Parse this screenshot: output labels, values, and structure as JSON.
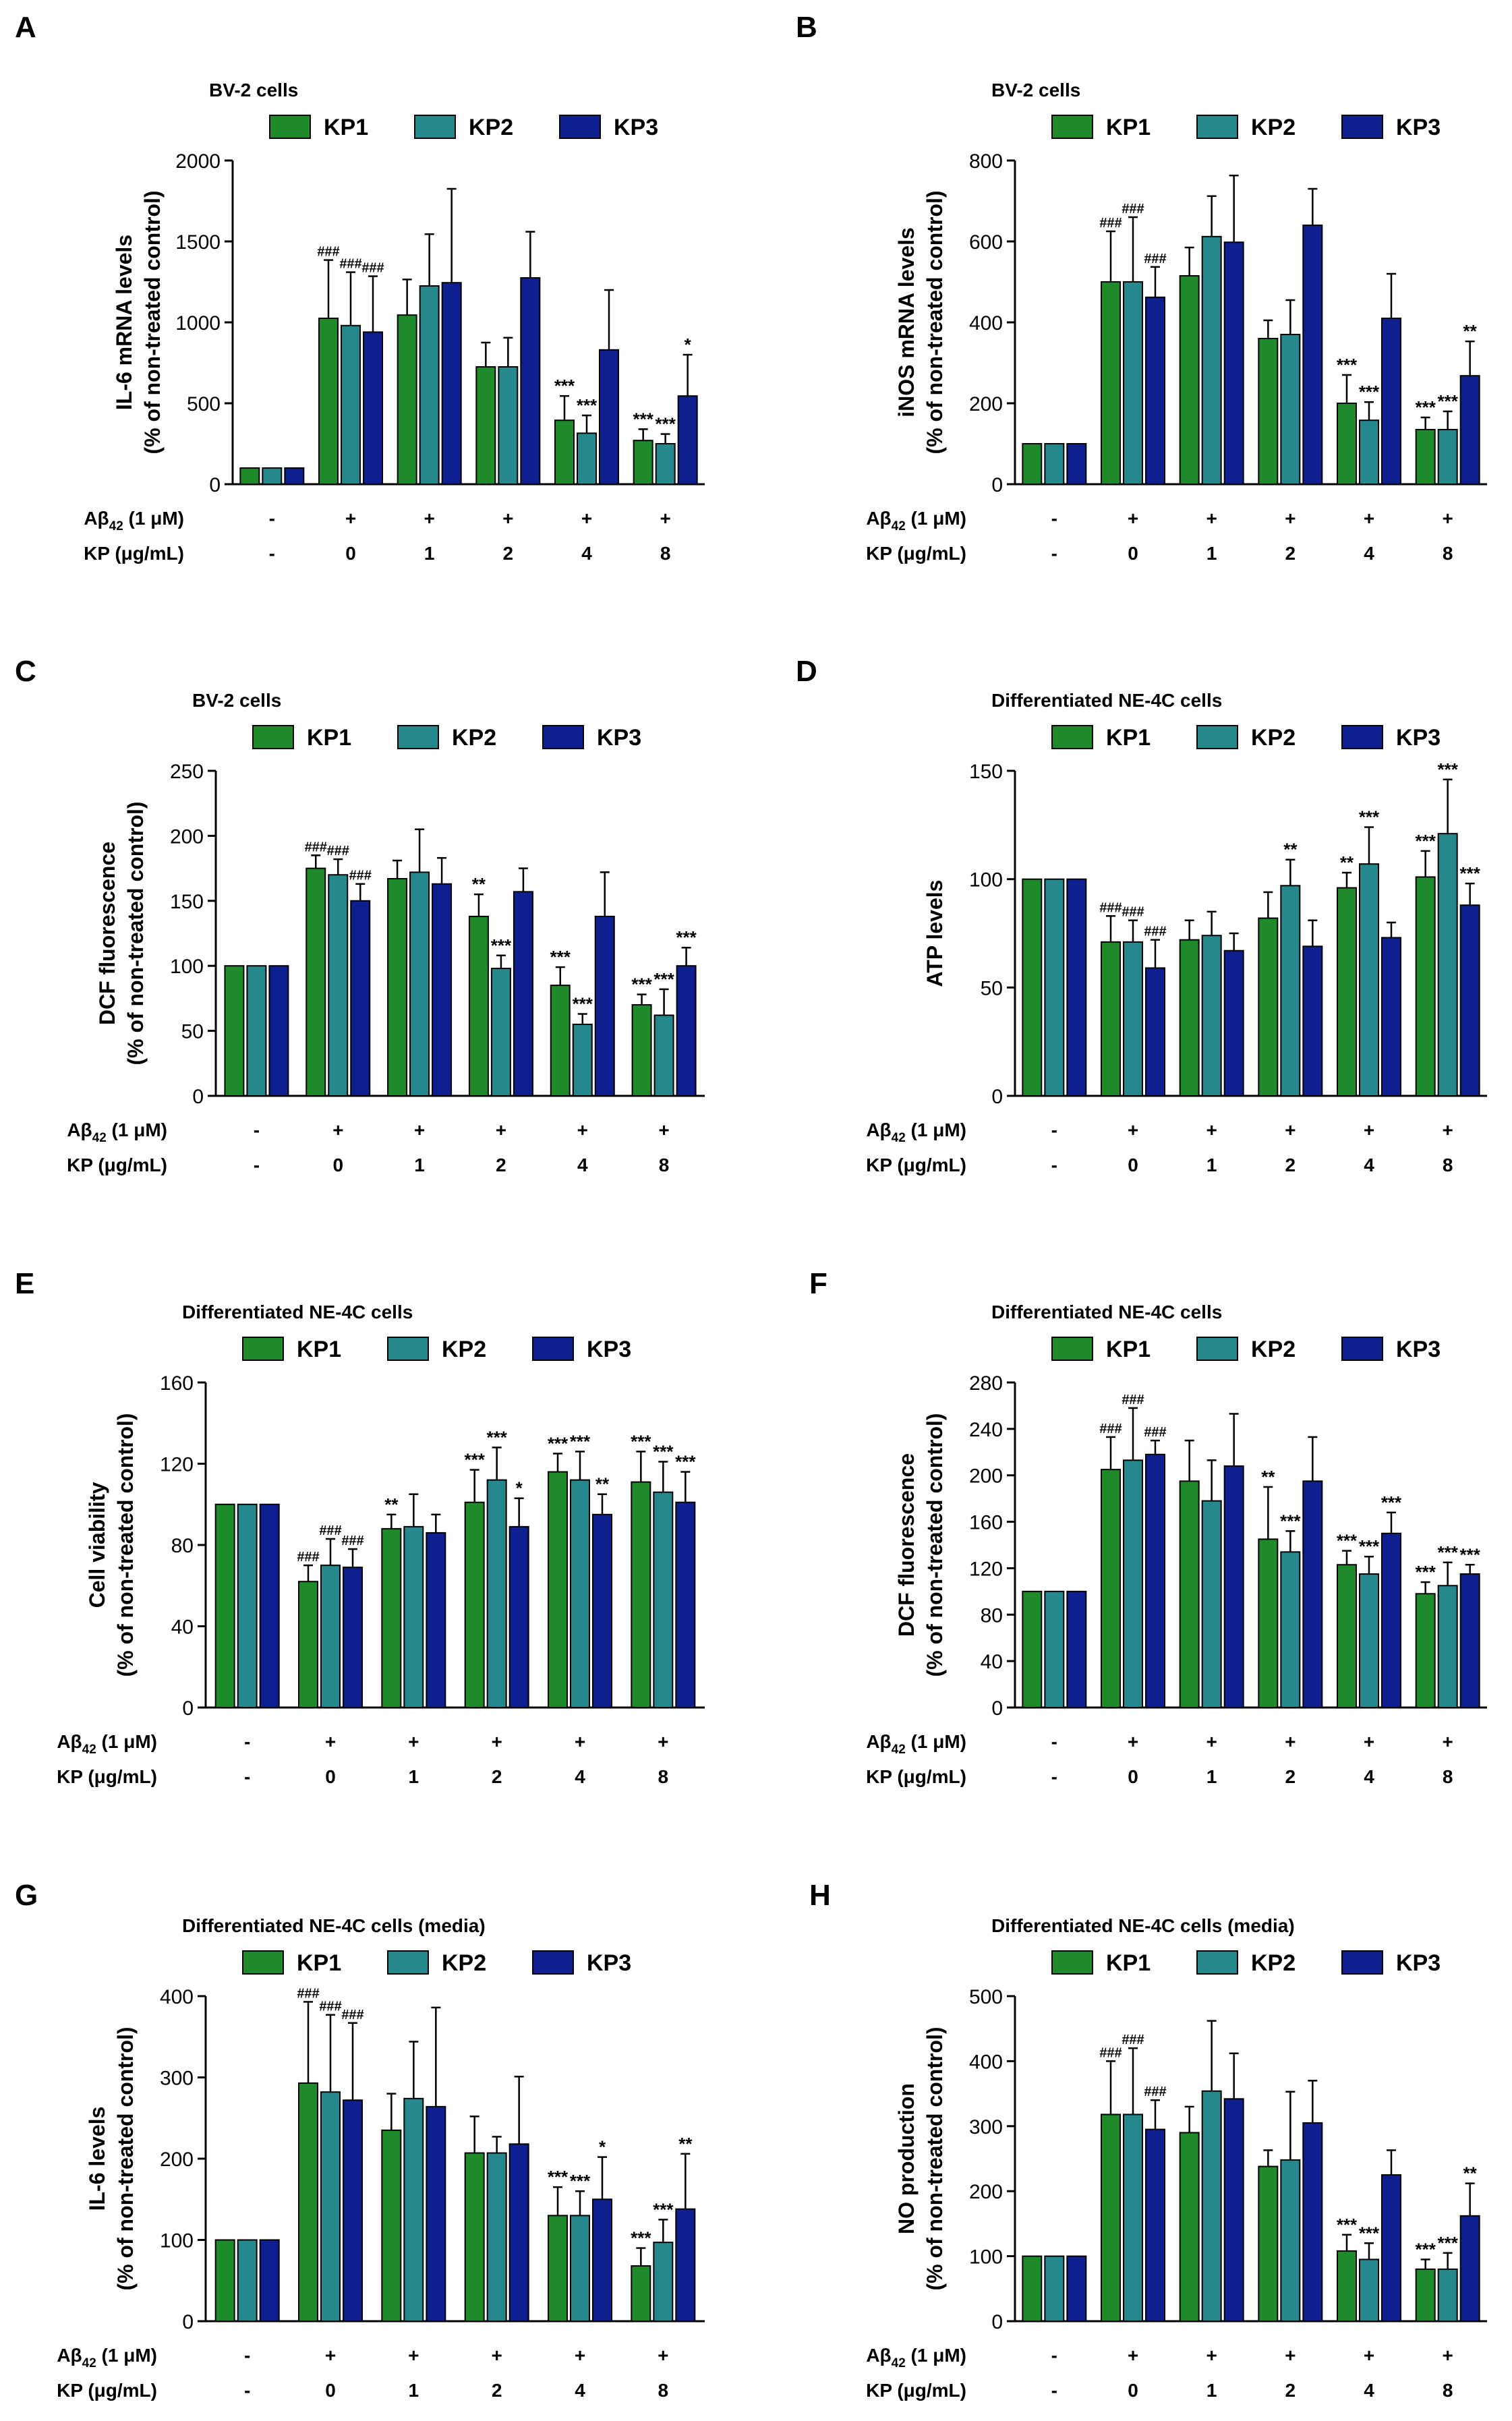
{
  "figure": {
    "legend": {
      "items": [
        "KP1",
        "KP2",
        "KP3"
      ]
    },
    "colors": {
      "KP1": "#1f8a2a",
      "KP2": "#25888d",
      "KP3": "#0e1f8f"
    },
    "x_axis": {
      "row1_label": "Aβ42 (1 μM)",
      "row1_values": [
        "-",
        "+",
        "+",
        "+",
        "+",
        "+"
      ],
      "row2_label": "KP (μg/mL)",
      "row2_values": [
        "-",
        "0",
        "1",
        "2",
        "4",
        "8"
      ]
    }
  },
  "chart_data": [
    {
      "panel": "A",
      "type": "bar",
      "title": "BV-2 cells",
      "ylabel_line1": "IL-6 mRNA levels",
      "ylabel_line2": "(% of non-treated control)",
      "ylim": [
        0,
        2000
      ],
      "yticks": [
        0,
        500,
        1000,
        1500,
        2000
      ],
      "categories": [
        "control",
        "0",
        "1",
        "2",
        "4",
        "8"
      ],
      "series": [
        {
          "name": "KP1",
          "values": [
            100,
            1025,
            1045,
            725,
            395,
            270
          ],
          "errors": [
            0,
            360,
            220,
            150,
            150,
            70
          ],
          "marks": [
            "",
            "###",
            "",
            "",
            "***",
            "***"
          ]
        },
        {
          "name": "KP2",
          "values": [
            100,
            980,
            1225,
            725,
            315,
            250
          ],
          "errors": [
            0,
            330,
            320,
            180,
            110,
            60
          ],
          "marks": [
            "",
            "###",
            "",
            "",
            "***",
            "***"
          ]
        },
        {
          "name": "KP3",
          "values": [
            100,
            940,
            1245,
            1275,
            830,
            545
          ],
          "errors": [
            0,
            345,
            580,
            285,
            370,
            255
          ],
          "marks": [
            "",
            "###",
            "",
            "",
            "",
            "*"
          ]
        }
      ]
    },
    {
      "panel": "B",
      "type": "bar",
      "title": "BV-2 cells",
      "ylabel_line1": "iNOS mRNA levels",
      "ylabel_line2": "(% of non-treated control)",
      "ylim": [
        0,
        800
      ],
      "yticks": [
        0,
        200,
        400,
        600,
        800
      ],
      "categories": [
        "control",
        "0",
        "1",
        "2",
        "4",
        "8"
      ],
      "series": [
        {
          "name": "KP1",
          "values": [
            100,
            500,
            515,
            360,
            200,
            135
          ],
          "errors": [
            0,
            125,
            70,
            45,
            70,
            30
          ],
          "marks": [
            "",
            "###",
            "",
            "",
            "***",
            "***"
          ]
        },
        {
          "name": "KP2",
          "values": [
            100,
            500,
            612,
            370,
            158,
            135
          ],
          "errors": [
            0,
            160,
            100,
            85,
            45,
            45
          ],
          "marks": [
            "",
            "###",
            "",
            "",
            "***",
            "***"
          ]
        },
        {
          "name": "KP3",
          "values": [
            100,
            462,
            598,
            640,
            410,
            268
          ],
          "errors": [
            0,
            75,
            165,
            90,
            110,
            85
          ],
          "marks": [
            "",
            "###",
            "",
            "",
            "",
            "**"
          ]
        }
      ]
    },
    {
      "panel": "C",
      "type": "bar",
      "title": "BV-2 cells",
      "ylabel_line1": "DCF fluorescence",
      "ylabel_line2": "(% of non-treated control)",
      "ylim": [
        0,
        250
      ],
      "yticks": [
        0,
        50,
        100,
        150,
        200,
        250
      ],
      "categories": [
        "control",
        "0",
        "1",
        "2",
        "4",
        "8"
      ],
      "series": [
        {
          "name": "KP1",
          "values": [
            100,
            175,
            167,
            138,
            85,
            70
          ],
          "errors": [
            0,
            10,
            14,
            17,
            14,
            8
          ],
          "marks": [
            "",
            "###",
            "",
            "**",
            "***",
            "***"
          ]
        },
        {
          "name": "KP2",
          "values": [
            100,
            170,
            172,
            98,
            55,
            62
          ],
          "errors": [
            0,
            12,
            33,
            10,
            8,
            20
          ],
          "marks": [
            "",
            "###",
            "",
            "***",
            "***",
            "***"
          ]
        },
        {
          "name": "KP3",
          "values": [
            100,
            150,
            163,
            157,
            138,
            100
          ],
          "errors": [
            0,
            13,
            20,
            18,
            34,
            14
          ],
          "marks": [
            "",
            "###",
            "",
            "",
            "",
            "***"
          ]
        }
      ]
    },
    {
      "panel": "D",
      "type": "bar",
      "title": "Differentiated NE-4C cells",
      "ylabel_line1": "ATP levels",
      "ylabel_line2": "",
      "ylim": [
        0,
        150
      ],
      "yticks": [
        0,
        50,
        100,
        150
      ],
      "categories": [
        "control",
        "0",
        "1",
        "2",
        "4",
        "8"
      ],
      "series": [
        {
          "name": "KP1",
          "values": [
            100,
            71,
            72,
            82,
            96,
            101
          ],
          "errors": [
            0,
            12,
            9,
            12,
            7,
            12
          ],
          "marks": [
            "",
            "###",
            "",
            "",
            "**",
            "***"
          ]
        },
        {
          "name": "KP2",
          "values": [
            100,
            71,
            74,
            97,
            107,
            121
          ],
          "errors": [
            0,
            10,
            11,
            12,
            17,
            25
          ],
          "marks": [
            "",
            "###",
            "",
            "**",
            "***",
            "***"
          ]
        },
        {
          "name": "KP3",
          "values": [
            100,
            59,
            67,
            69,
            73,
            88
          ],
          "errors": [
            0,
            13,
            8,
            12,
            7,
            10
          ],
          "marks": [
            "",
            "###",
            "",
            "",
            "",
            "***"
          ]
        }
      ]
    },
    {
      "panel": "E",
      "type": "bar",
      "title": "Differentiated NE-4C cells",
      "ylabel_line1": "Cell viability",
      "ylabel_line2": "(% of non-treated control)",
      "ylim": [
        0,
        160
      ],
      "yticks": [
        0,
        40,
        80,
        120,
        160
      ],
      "categories": [
        "control",
        "0",
        "1",
        "2",
        "4",
        "8"
      ],
      "series": [
        {
          "name": "KP1",
          "values": [
            100,
            62,
            88,
            101,
            116,
            111
          ],
          "errors": [
            0,
            8,
            7,
            16,
            9,
            15
          ],
          "marks": [
            "",
            "###",
            "**",
            "***",
            "***",
            "***"
          ]
        },
        {
          "name": "KP2",
          "values": [
            100,
            70,
            89,
            112,
            112,
            106
          ],
          "errors": [
            0,
            13,
            16,
            16,
            14,
            15
          ],
          "marks": [
            "",
            "###",
            "",
            "***",
            "***",
            "***"
          ]
        },
        {
          "name": "KP3",
          "values": [
            100,
            69,
            86,
            89,
            95,
            101
          ],
          "errors": [
            0,
            9,
            9,
            14,
            10,
            15
          ],
          "marks": [
            "",
            "###",
            "",
            "*",
            "**",
            "***"
          ]
        }
      ]
    },
    {
      "panel": "F",
      "type": "bar",
      "title": "Differentiated NE-4C cells",
      "ylabel_line1": "DCF fluorescence",
      "ylabel_line2": "(% of non-treated control)",
      "ylim": [
        0,
        280
      ],
      "yticks": [
        0,
        40,
        80,
        120,
        160,
        200,
        240,
        280
      ],
      "categories": [
        "control",
        "0",
        "1",
        "2",
        "4",
        "8"
      ],
      "series": [
        {
          "name": "KP1",
          "values": [
            100,
            205,
            195,
            145,
            123,
            98
          ],
          "errors": [
            0,
            28,
            35,
            45,
            12,
            10
          ],
          "marks": [
            "",
            "###",
            "",
            "**",
            "***",
            "***"
          ]
        },
        {
          "name": "KP2",
          "values": [
            100,
            213,
            178,
            134,
            115,
            105
          ],
          "errors": [
            0,
            45,
            35,
            18,
            15,
            20
          ],
          "marks": [
            "",
            "###",
            "",
            "***",
            "***",
            "***"
          ]
        },
        {
          "name": "KP3",
          "values": [
            100,
            218,
            208,
            195,
            150,
            115
          ],
          "errors": [
            0,
            12,
            45,
            38,
            18,
            8
          ],
          "marks": [
            "",
            "###",
            "",
            "",
            "***",
            "***"
          ]
        }
      ]
    },
    {
      "panel": "G",
      "type": "bar",
      "title": "Differentiated NE-4C cells (media)",
      "ylabel_line1": "IL-6 levels",
      "ylabel_line2": "(% of non-treated control)",
      "ylim": [
        0,
        400
      ],
      "yticks": [
        0,
        100,
        200,
        300,
        400
      ],
      "categories": [
        "control",
        "0",
        "1",
        "2",
        "4",
        "8"
      ],
      "series": [
        {
          "name": "KP1",
          "values": [
            100,
            293,
            235,
            207,
            130,
            68
          ],
          "errors": [
            0,
            100,
            45,
            45,
            35,
            22
          ],
          "marks": [
            "",
            "###",
            "",
            "",
            "***",
            "***"
          ]
        },
        {
          "name": "KP2",
          "values": [
            100,
            282,
            274,
            207,
            130,
            97
          ],
          "errors": [
            0,
            95,
            70,
            20,
            30,
            28
          ],
          "marks": [
            "",
            "###",
            "",
            "",
            "***",
            "***"
          ]
        },
        {
          "name": "KP3",
          "values": [
            100,
            272,
            264,
            218,
            150,
            138
          ],
          "errors": [
            0,
            95,
            122,
            83,
            52,
            68
          ],
          "marks": [
            "",
            "###",
            "",
            "",
            "*",
            "**"
          ]
        }
      ]
    },
    {
      "panel": "H",
      "type": "bar",
      "title": "Differentiated NE-4C cells (media)",
      "ylabel_line1": "NO production",
      "ylabel_line2": "(% of non-treated control)",
      "ylim": [
        0,
        500
      ],
      "yticks": [
        0,
        100,
        200,
        300,
        400,
        500
      ],
      "categories": [
        "control",
        "0",
        "1",
        "2",
        "4",
        "8"
      ],
      "series": [
        {
          "name": "KP1",
          "values": [
            100,
            318,
            290,
            238,
            108,
            80
          ],
          "errors": [
            0,
            82,
            40,
            25,
            25,
            15
          ],
          "marks": [
            "",
            "###",
            "",
            "",
            "***",
            "***"
          ]
        },
        {
          "name": "KP2",
          "values": [
            100,
            318,
            354,
            248,
            95,
            80
          ],
          "errors": [
            0,
            102,
            108,
            105,
            25,
            25
          ],
          "marks": [
            "",
            "###",
            "",
            "",
            "***",
            "***"
          ]
        },
        {
          "name": "KP3",
          "values": [
            100,
            295,
            342,
            305,
            225,
            162
          ],
          "errors": [
            0,
            45,
            70,
            65,
            38,
            50
          ],
          "marks": [
            "",
            "###",
            "",
            "",
            "",
            "**"
          ]
        }
      ]
    }
  ]
}
